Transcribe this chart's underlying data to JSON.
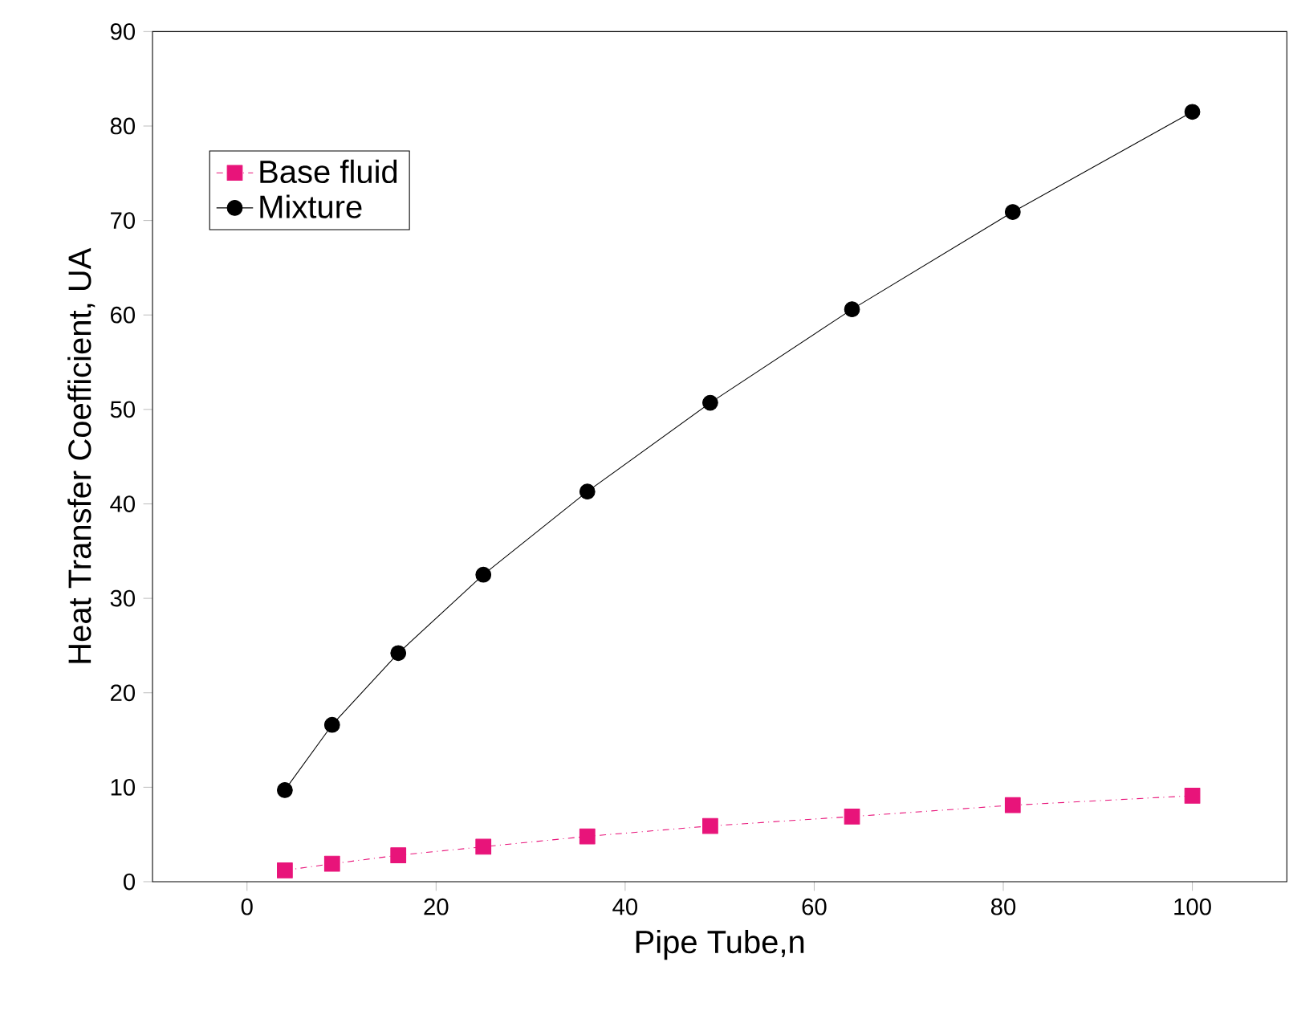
{
  "chart_data": {
    "type": "line",
    "xlabel": "Pipe Tube,n",
    "ylabel": "Heat Transfer Coefficient, UA",
    "x": [
      4,
      9,
      16,
      25,
      36,
      49,
      64,
      81,
      100
    ],
    "series": [
      {
        "name": "Base fluid",
        "color": "#e8147a",
        "marker": "square",
        "line_style": "dashed",
        "values": [
          1.2,
          1.9,
          2.8,
          3.7,
          4.8,
          5.9,
          6.9,
          8.1,
          9.1
        ]
      },
      {
        "name": "Mixture",
        "color": "#000000",
        "marker": "circle",
        "line_style": "solid",
        "values": [
          9.7,
          16.6,
          24.2,
          32.5,
          41.3,
          50.7,
          60.6,
          70.9,
          81.5
        ]
      }
    ],
    "xlim": [
      -10,
      110
    ],
    "ylim": [
      0,
      90
    ],
    "xticks": [
      0,
      20,
      40,
      60,
      80,
      100
    ],
    "yticks": [
      0,
      10,
      20,
      30,
      40,
      50,
      60,
      70,
      80,
      90
    ],
    "grid": false,
    "legend": "top left"
  }
}
